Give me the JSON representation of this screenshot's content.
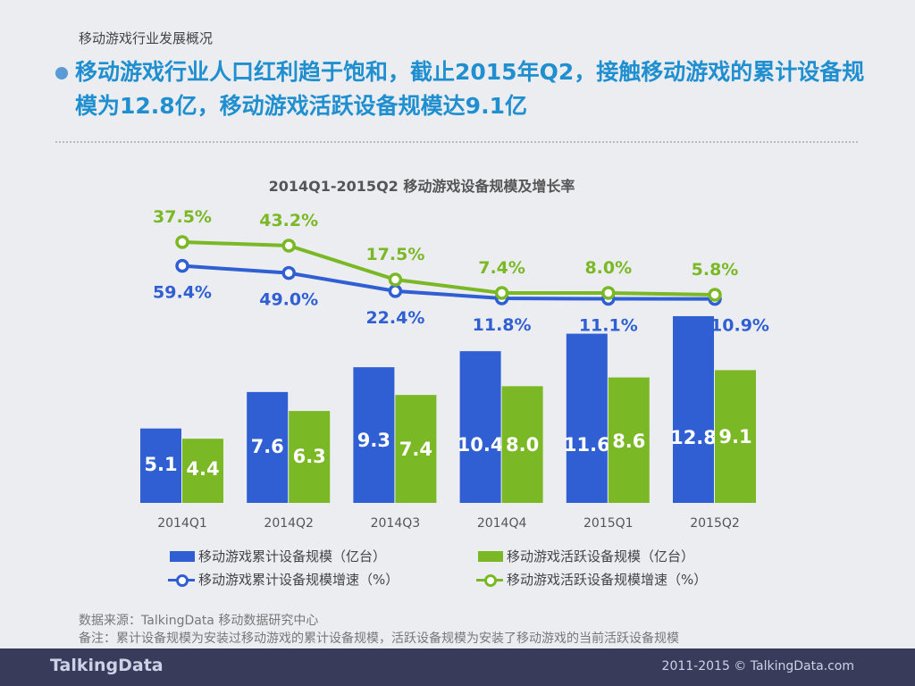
{
  "subtitle": "移动游戏行业发展概况",
  "headline": "移动游戏行业人口红利趋于饱和，截止2015年Q2，接触移动游戏的累计设备规模为12.8亿，移动游戏活跃设备规模达9.1亿",
  "colors": {
    "blue": "#2f5fd3",
    "green": "#7ab826",
    "footer": "#383c5a"
  },
  "chart_data": {
    "type": "bar",
    "title": "2014Q1-2015Q2 移动游戏设备规模及增长率",
    "categories": [
      "2014Q1",
      "2014Q2",
      "2014Q3",
      "2014Q4",
      "2015Q1",
      "2015Q2"
    ],
    "series": [
      {
        "name": "移动游戏累计设备规模（亿台）",
        "type": "bar",
        "values": [
          5.1,
          7.6,
          9.3,
          10.4,
          11.6,
          12.8
        ],
        "labels": [
          "5.1",
          "7.6",
          "9.3",
          "10.4",
          "11.6",
          "12.8"
        ]
      },
      {
        "name": "移动游戏活跃设备规模（亿台）",
        "type": "bar",
        "values": [
          4.4,
          6.3,
          7.4,
          8.0,
          8.6,
          9.1
        ],
        "labels": [
          "4.4",
          "6.3",
          "7.4",
          "8.0",
          "8.6",
          "9.1"
        ]
      },
      {
        "name": "移动游戏累计设备规模增速（%）",
        "type": "line",
        "values": [
          59.4,
          49.0,
          22.4,
          11.8,
          11.1,
          10.9
        ],
        "labels": [
          "59.4%",
          "49.0%",
          "22.4%",
          "11.8%",
          "11.1%",
          "10.9%"
        ]
      },
      {
        "name": "移动游戏活跃设备规模增速（%）",
        "type": "line",
        "values": [
          37.5,
          43.2,
          17.5,
          7.4,
          8.0,
          5.8
        ],
        "labels": [
          "37.5%",
          "43.2%",
          "17.5%",
          "7.4%",
          "8.0%",
          "5.8%"
        ]
      }
    ],
    "legend": "bottom"
  },
  "source": "数据来源：TalkingData 移动数据研究中心",
  "note": "备注：累计设备规模为安装过移动游戏的累计设备规模，活跃设备规模为安装了移动游戏的当前活跃设备规模",
  "footer": {
    "logo": "TalkingData",
    "copyright": "2011-2015 © TalkingData.com"
  }
}
